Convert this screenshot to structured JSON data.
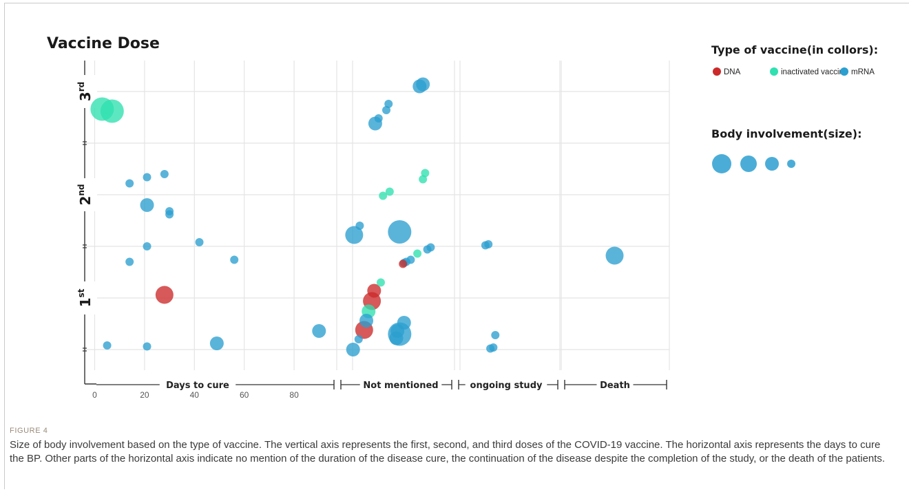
{
  "chart_data": {
    "type": "bubble",
    "title": "Vaccine Dose",
    "legend": {
      "color_title": "Type of vaccine(in collors):",
      "entries": [
        {
          "name": "DNA",
          "color": "#cc2a2a"
        },
        {
          "name": "inactivated vaccine",
          "color": "#2fe0b0"
        },
        {
          "name": "mRNA",
          "color": "#2b9fd0"
        }
      ],
      "size_title": "Body involvement(size):",
      "sizes": [
        4,
        3,
        2,
        1
      ],
      "placement": "right"
    },
    "y_axis": {
      "ticks": [
        {
          "label": "1",
          "sup": "st",
          "value": 1
        },
        {
          "label": "2",
          "sup": "nd",
          "value": 2
        },
        {
          "label": "3",
          "sup": "rd",
          "value": 3
        }
      ],
      "minor_ticks": [
        0.5,
        1.5,
        2.5
      ],
      "range": [
        0.3,
        3.3
      ]
    },
    "x_axis": {
      "days_range": [
        -4,
        96
      ],
      "tick_labels": [
        "0",
        "20",
        "40",
        "60",
        "80"
      ],
      "tick_values": [
        0,
        20,
        40,
        60,
        80
      ],
      "sections": [
        "Days to cure",
        "Not mentioned",
        "ongoing study",
        "Death"
      ]
    },
    "grid": true,
    "points": [
      {
        "section": "days",
        "x": 3,
        "y": 2.83,
        "size": 4,
        "vaccine": "inactivated vaccine"
      },
      {
        "section": "days",
        "x": 7,
        "y": 2.81,
        "size": 4,
        "vaccine": "inactivated vaccine"
      },
      {
        "section": "days",
        "x": 14,
        "y": 2.11,
        "size": 1,
        "vaccine": "mRNA"
      },
      {
        "section": "days",
        "x": 21,
        "y": 2.17,
        "size": 1,
        "vaccine": "mRNA"
      },
      {
        "section": "days",
        "x": 28,
        "y": 2.2,
        "size": 1,
        "vaccine": "mRNA"
      },
      {
        "section": "days",
        "x": 21,
        "y": 1.9,
        "size": 2,
        "vaccine": "mRNA"
      },
      {
        "section": "days",
        "x": 30,
        "y": 1.84,
        "size": 1,
        "vaccine": "mRNA"
      },
      {
        "section": "days",
        "x": 30,
        "y": 1.81,
        "size": 1,
        "vaccine": "mRNA"
      },
      {
        "section": "days",
        "x": 42,
        "y": 1.54,
        "size": 1,
        "vaccine": "mRNA"
      },
      {
        "section": "days",
        "x": 21,
        "y": 1.5,
        "size": 1,
        "vaccine": "mRNA"
      },
      {
        "section": "days",
        "x": 14,
        "y": 1.35,
        "size": 1,
        "vaccine": "mRNA"
      },
      {
        "section": "days",
        "x": 56,
        "y": 1.37,
        "size": 1,
        "vaccine": "mRNA"
      },
      {
        "section": "days",
        "x": 28,
        "y": 1.03,
        "size": 3,
        "vaccine": "DNA"
      },
      {
        "section": "days",
        "x": 90,
        "y": 0.68,
        "size": 2,
        "vaccine": "mRNA"
      },
      {
        "section": "days",
        "x": 49,
        "y": 0.56,
        "size": 2,
        "vaccine": "mRNA"
      },
      {
        "section": "days",
        "x": 5,
        "y": 0.54,
        "size": 1,
        "vaccine": "mRNA"
      },
      {
        "section": "days",
        "x": 21,
        "y": 0.53,
        "size": 1,
        "vaccine": "mRNA"
      },
      {
        "section": "not_mentioned",
        "x": 0.74,
        "y": 3.07,
        "size": 2,
        "vaccine": "mRNA"
      },
      {
        "section": "not_mentioned",
        "x": 0.71,
        "y": 3.05,
        "size": 2,
        "vaccine": "mRNA"
      },
      {
        "section": "not_mentioned",
        "x": 0.43,
        "y": 2.88,
        "size": 1,
        "vaccine": "mRNA"
      },
      {
        "section": "not_mentioned",
        "x": 0.41,
        "y": 2.82,
        "size": 1,
        "vaccine": "mRNA"
      },
      {
        "section": "not_mentioned",
        "x": 0.34,
        "y": 2.74,
        "size": 1,
        "vaccine": "mRNA"
      },
      {
        "section": "not_mentioned",
        "x": 0.31,
        "y": 2.69,
        "size": 2,
        "vaccine": "mRNA"
      },
      {
        "section": "not_mentioned",
        "x": 0.76,
        "y": 2.21,
        "size": 1,
        "vaccine": "inactivated vaccine"
      },
      {
        "section": "not_mentioned",
        "x": 0.74,
        "y": 2.15,
        "size": 1,
        "vaccine": "inactivated vaccine"
      },
      {
        "section": "not_mentioned",
        "x": 0.44,
        "y": 2.03,
        "size": 1,
        "vaccine": "inactivated vaccine"
      },
      {
        "section": "not_mentioned",
        "x": 0.38,
        "y": 1.99,
        "size": 1,
        "vaccine": "inactivated vaccine"
      },
      {
        "section": "not_mentioned",
        "x": 0.17,
        "y": 1.7,
        "size": 1,
        "vaccine": "mRNA"
      },
      {
        "section": "not_mentioned",
        "x": 0.12,
        "y": 1.61,
        "size": 3,
        "vaccine": "mRNA"
      },
      {
        "section": "not_mentioned",
        "x": 0.53,
        "y": 1.64,
        "size": 4,
        "vaccine": "mRNA"
      },
      {
        "section": "not_mentioned",
        "x": 0.81,
        "y": 1.49,
        "size": 1,
        "vaccine": "mRNA"
      },
      {
        "section": "not_mentioned",
        "x": 0.78,
        "y": 1.47,
        "size": 1,
        "vaccine": "mRNA"
      },
      {
        "section": "not_mentioned",
        "x": 0.69,
        "y": 1.43,
        "size": 1,
        "vaccine": "inactivated vaccine"
      },
      {
        "section": "not_mentioned",
        "x": 0.63,
        "y": 1.37,
        "size": 1,
        "vaccine": "mRNA"
      },
      {
        "section": "not_mentioned",
        "x": 0.59,
        "y": 1.35,
        "size": 1,
        "vaccine": "mRNA"
      },
      {
        "section": "not_mentioned",
        "x": 0.57,
        "y": 1.34,
        "size": 1,
        "vaccine": "mRNA"
      },
      {
        "section": "not_mentioned",
        "x": 0.56,
        "y": 1.33,
        "size": 1,
        "vaccine": "DNA"
      },
      {
        "section": "not_mentioned",
        "x": 0.36,
        "y": 1.15,
        "size": 1,
        "vaccine": "inactivated vaccine"
      },
      {
        "section": "not_mentioned",
        "x": 0.3,
        "y": 1.07,
        "size": 2,
        "vaccine": "DNA"
      },
      {
        "section": "not_mentioned",
        "x": 0.28,
        "y": 0.97,
        "size": 3,
        "vaccine": "DNA"
      },
      {
        "section": "not_mentioned",
        "x": 0.25,
        "y": 0.87,
        "size": 2,
        "vaccine": "inactivated vaccine"
      },
      {
        "section": "not_mentioned",
        "x": 0.23,
        "y": 0.78,
        "size": 2,
        "vaccine": "mRNA"
      },
      {
        "section": "not_mentioned",
        "x": 0.57,
        "y": 0.76,
        "size": 2,
        "vaccine": "mRNA"
      },
      {
        "section": "not_mentioned",
        "x": 0.21,
        "y": 0.69,
        "size": 3,
        "vaccine": "DNA"
      },
      {
        "section": "not_mentioned",
        "x": 0.51,
        "y": 0.68,
        "size": 2,
        "vaccine": "mRNA"
      },
      {
        "section": "not_mentioned",
        "x": 0.53,
        "y": 0.65,
        "size": 4,
        "vaccine": "mRNA"
      },
      {
        "section": "not_mentioned",
        "x": 0.5,
        "y": 0.61,
        "size": 2,
        "vaccine": "mRNA"
      },
      {
        "section": "not_mentioned",
        "x": 0.16,
        "y": 0.6,
        "size": 1,
        "vaccine": "mRNA"
      },
      {
        "section": "not_mentioned",
        "x": 0.11,
        "y": 0.5,
        "size": 2,
        "vaccine": "mRNA"
      },
      {
        "section": "ongoing",
        "x": 0.27,
        "y": 1.51,
        "size": 1,
        "vaccine": "mRNA"
      },
      {
        "section": "ongoing",
        "x": 0.3,
        "y": 1.52,
        "size": 1,
        "vaccine": "mRNA"
      },
      {
        "section": "ongoing",
        "x": 0.37,
        "y": 0.64,
        "size": 1,
        "vaccine": "mRNA"
      },
      {
        "section": "ongoing",
        "x": 0.32,
        "y": 0.51,
        "size": 1,
        "vaccine": "mRNA"
      },
      {
        "section": "ongoing",
        "x": 0.35,
        "y": 0.52,
        "size": 1,
        "vaccine": "mRNA"
      },
      {
        "section": "death",
        "x": 0.49,
        "y": 1.41,
        "size": 3,
        "vaccine": "mRNA"
      }
    ]
  },
  "caption": {
    "label": "FIGURE 4",
    "text": "Size of body involvement based on the type of vaccine. The vertical axis represents the first, second, and third doses of the COVID-19 vaccine. The horizontal axis represents the days to cure the BP. Other parts of the horizontal axis indicate no mention of the duration of the disease cure, the continuation of the disease despite the completion of the study, or the death of the patients."
  }
}
